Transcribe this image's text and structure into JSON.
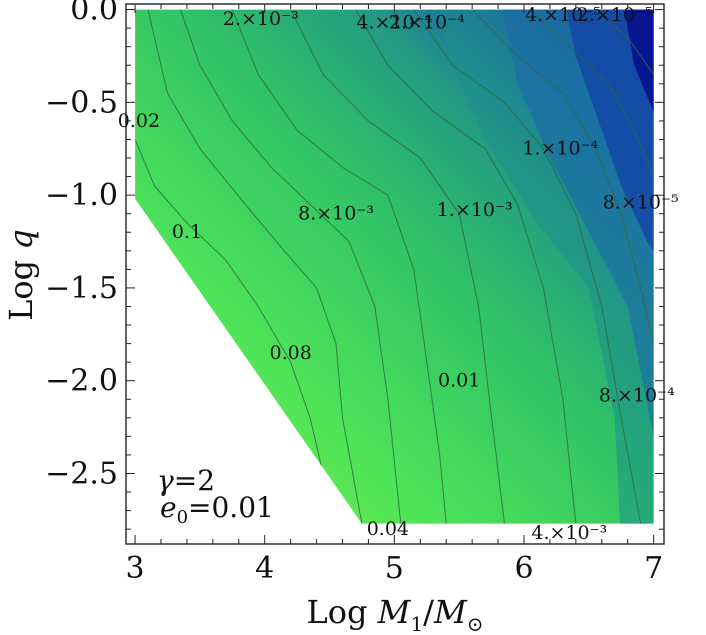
{
  "chart_data": {
    "type": "contour",
    "xlabel": "Log M_1/M_⊙",
    "ylabel": "Log q",
    "xlim": [
      2.93,
      7.08
    ],
    "ylim": [
      -2.88,
      0.03
    ],
    "x_ticks": [
      "3",
      "4",
      "5",
      "6",
      "7"
    ],
    "y_ticks": [
      "0.0",
      "−0.5",
      "−1.0",
      "−1.5",
      "−2.0",
      "−2.5"
    ],
    "x_tick_values": [
      3,
      4,
      5,
      6,
      7
    ],
    "y_tick_values": [
      0.0,
      -0.5,
      -1.0,
      -1.5,
      -2.0,
      -2.5
    ],
    "parameters": [
      {
        "name": "gamma",
        "text": "γ=2"
      },
      {
        "name": "e0",
        "text": "e₀=0.01"
      }
    ],
    "colormap": [
      "#8ef03c",
      "#3fe058",
      "#25a87a",
      "#1a5fb0",
      "#000a8a"
    ],
    "contour_labels": [
      {
        "text": "0.02",
        "x": 3.03,
        "y": -0.6
      },
      {
        "text": "0.1",
        "x": 3.4,
        "y": -1.2
      },
      {
        "text": "0.08",
        "x": 4.2,
        "y": -1.85
      },
      {
        "text": "0.04",
        "x": 4.95,
        "y": -2.8
      },
      {
        "text": "0.01",
        "x": 5.5,
        "y": -2.0
      },
      {
        "text": "8.×10⁻³",
        "x": 4.55,
        "y": -1.1
      },
      {
        "text": "4.×10⁻³",
        "x": 6.35,
        "y": -2.82
      },
      {
        "text": "2.×10⁻³",
        "x": 3.97,
        "y": -0.05
      },
      {
        "text": "1.×10⁻³",
        "x": 5.62,
        "y": -1.08
      },
      {
        "text": "8.×10⁻⁴",
        "x": 6.87,
        "y": -2.08
      },
      {
        "text": "4.×10⁻⁴",
        "x": 5.0,
        "y": -0.07
      },
      {
        "text": "2.×10⁻⁴",
        "x": 5.25,
        "y": -0.07
      },
      {
        "text": "1.×10⁻⁴",
        "x": 6.28,
        "y": -0.75
      },
      {
        "text": "8.×10⁻⁵",
        "x": 6.9,
        "y": -1.04
      },
      {
        "text": "4.×10⁻⁵",
        "x": 6.3,
        "y": -0.03
      },
      {
        "text": "2.×10⁻⁵",
        "x": 6.7,
        "y": -0.03
      }
    ]
  }
}
